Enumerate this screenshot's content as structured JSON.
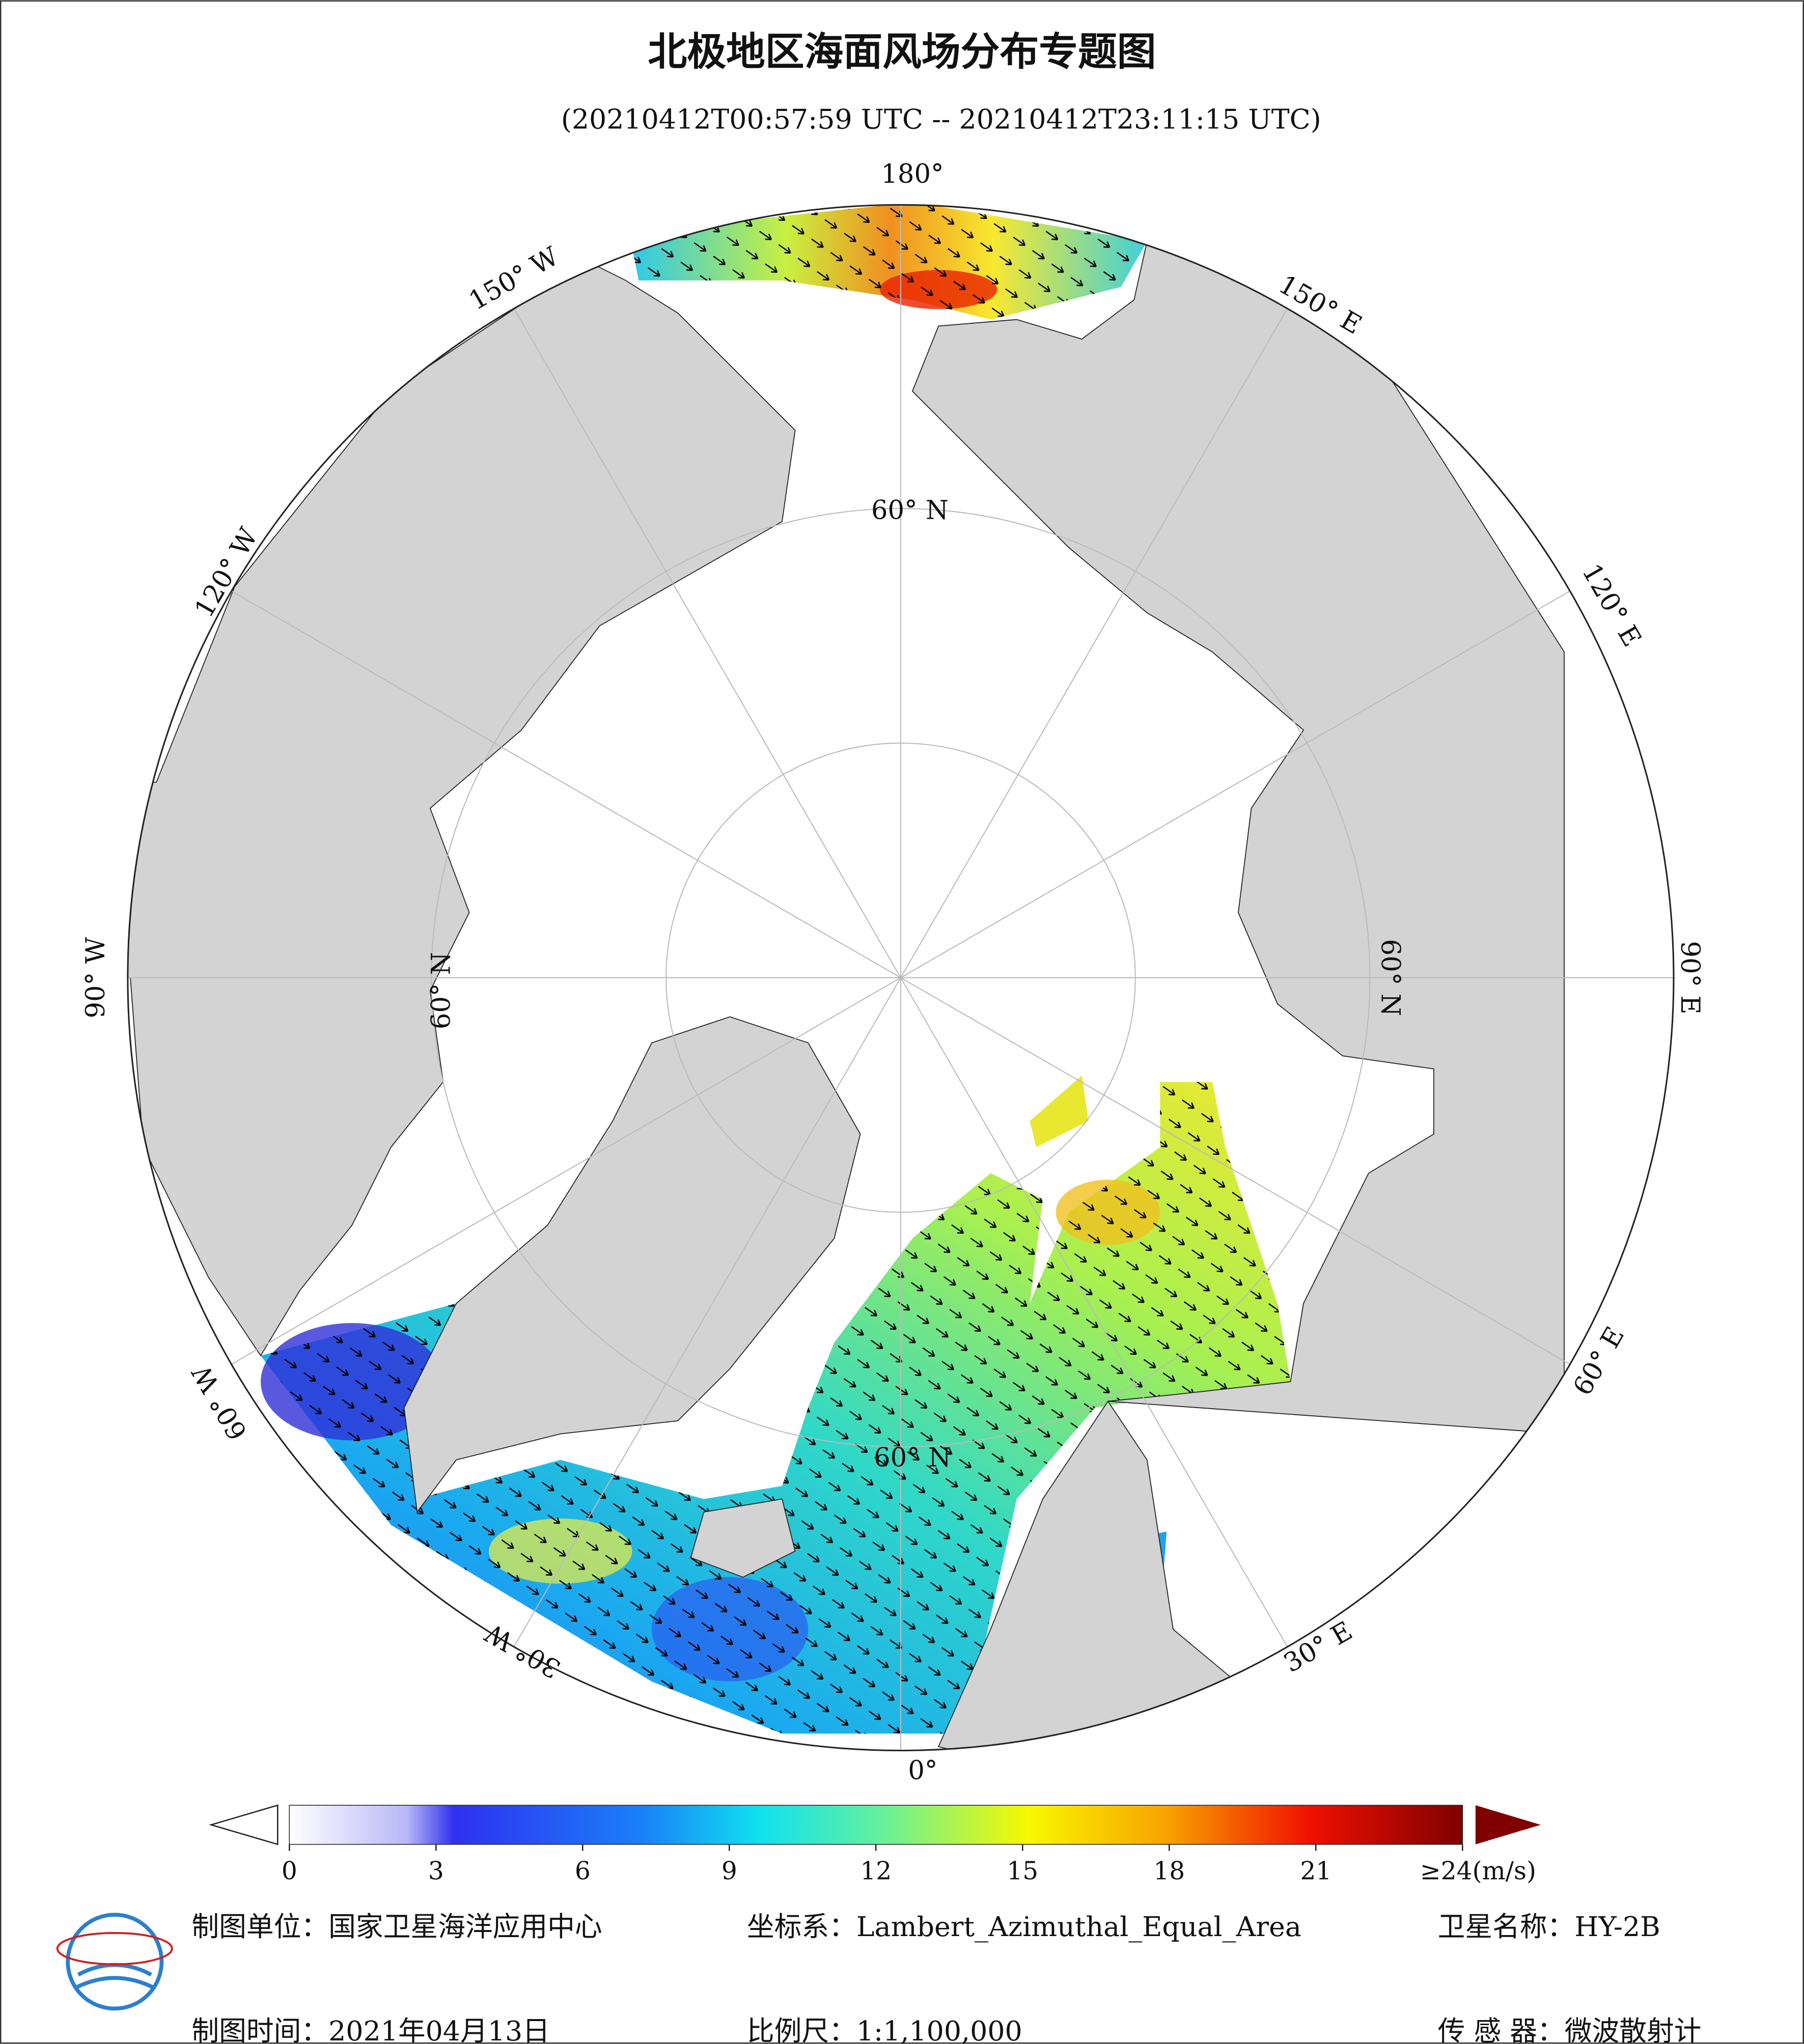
{
  "header": {
    "title": "北极地区海面风场分布专题图",
    "subtitle": "(20210412T00:57:59 UTC -- 20210412T23:11:15 UTC)"
  },
  "map": {
    "graticule_labels": [
      "180°",
      "150° E",
      "120° E",
      "90° E",
      "60° E",
      "30° E",
      "0°",
      "30° W",
      "60° W",
      "90° W",
      "120° W",
      "150° W",
      "60° N",
      "60° N",
      "60° N",
      "60° N"
    ]
  },
  "colorbar": {
    "ticks": [
      0,
      3,
      6,
      9,
      12,
      15,
      18,
      21,
      {
        "value": 24,
        "label": "≥24(m/s)"
      }
    ]
  },
  "footer": {
    "unit": "制图单位：国家卫星海洋应用中心",
    "crs": "坐标系：Lambert_Azimuthal_Equal_Area",
    "satellite": "卫星名称：HY-2B",
    "date": "制图时间：2021年04月13日",
    "scale": "比例尺：1:1,100,000",
    "sensor": "传 感 器：微波散射计"
  }
}
